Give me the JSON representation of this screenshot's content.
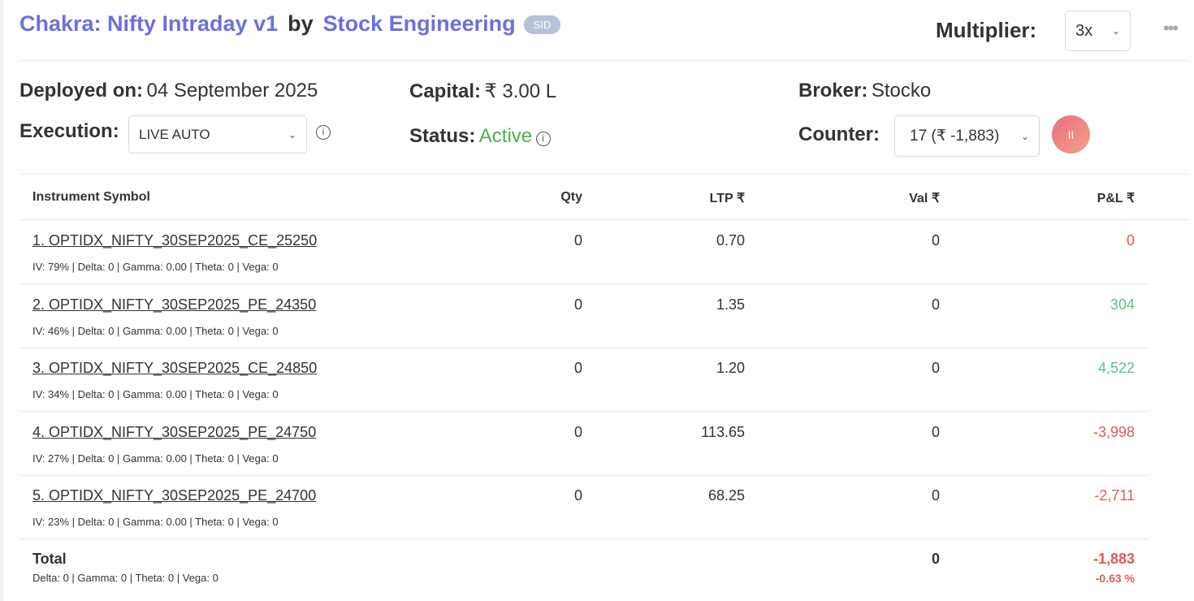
{
  "header": {
    "strategy": "Chakra: Nifty Intraday v1",
    "by": "by",
    "author": "Stock Engineering",
    "badge": "SID",
    "multiplier_label": "Multiplier:",
    "multiplier_value": "3x",
    "more": "•••"
  },
  "info": {
    "deployed_label": "Deployed on:",
    "deployed_value": "04 September 2025",
    "capital_label": "Capital:",
    "capital_value": "₹ 3.00 L",
    "broker_label": "Broker:",
    "broker_value": "Stocko",
    "execution_label": "Execution:",
    "execution_value": "LIVE AUTO",
    "status_label": "Status:",
    "status_value": "Active",
    "counter_label": "Counter:",
    "counter_value": "17 (₹ -1,883)",
    "pause_icon": "II"
  },
  "table": {
    "headers": [
      "Instrument Symbol",
      "Qty",
      "LTP ₹",
      "Val ₹",
      "P&L ₹"
    ],
    "rows": [
      {
        "symbol": "1. OPTIDX_NIFTY_30SEP2025_CE_25250",
        "greeks": "IV: 79% | Delta: 0 | Gamma: 0.00 | Theta: 0 | Vega: 0",
        "qty": "0",
        "ltp": "0.70",
        "val": "0",
        "pnl": "0",
        "sign": "neg"
      },
      {
        "symbol": "2. OPTIDX_NIFTY_30SEP2025_PE_24350",
        "greeks": "IV: 46% | Delta: 0 | Gamma: 0.00 | Theta: 0 | Vega: 0",
        "qty": "0",
        "ltp": "1.35",
        "val": "0",
        "pnl": "304",
        "sign": "pos"
      },
      {
        "symbol": "3. OPTIDX_NIFTY_30SEP2025_CE_24850",
        "greeks": "IV: 34% | Delta: 0 | Gamma: 0.00 | Theta: 0 | Vega: 0",
        "qty": "0",
        "ltp": "1.20",
        "val": "0",
        "pnl": "4,522",
        "sign": "pos"
      },
      {
        "symbol": "4. OPTIDX_NIFTY_30SEP2025_PE_24750",
        "greeks": "IV: 27% | Delta: 0 | Gamma: 0.00 | Theta: 0 | Vega: 0",
        "qty": "0",
        "ltp": "113.65",
        "val": "0",
        "pnl": "-3,998",
        "sign": "neg"
      },
      {
        "symbol": "5. OPTIDX_NIFTY_30SEP2025_PE_24700",
        "greeks": "IV: 23% | Delta: 0 | Gamma: 0.00 | Theta: 0 | Vega: 0",
        "qty": "0",
        "ltp": "68.25",
        "val": "0",
        "pnl": "-2,711",
        "sign": "neg"
      }
    ],
    "total": {
      "label": "Total",
      "greeks": "Delta: 0 | Gamma: 0  | Theta: 0 | Vega: 0",
      "val": "0",
      "pnl": "-1,883",
      "pnl_pct": "-0.63 %"
    }
  },
  "colors": {
    "accent": "#6a70e0",
    "positive": "#5cc08a",
    "negative": "#e05a5a",
    "active": "#4caf50"
  }
}
